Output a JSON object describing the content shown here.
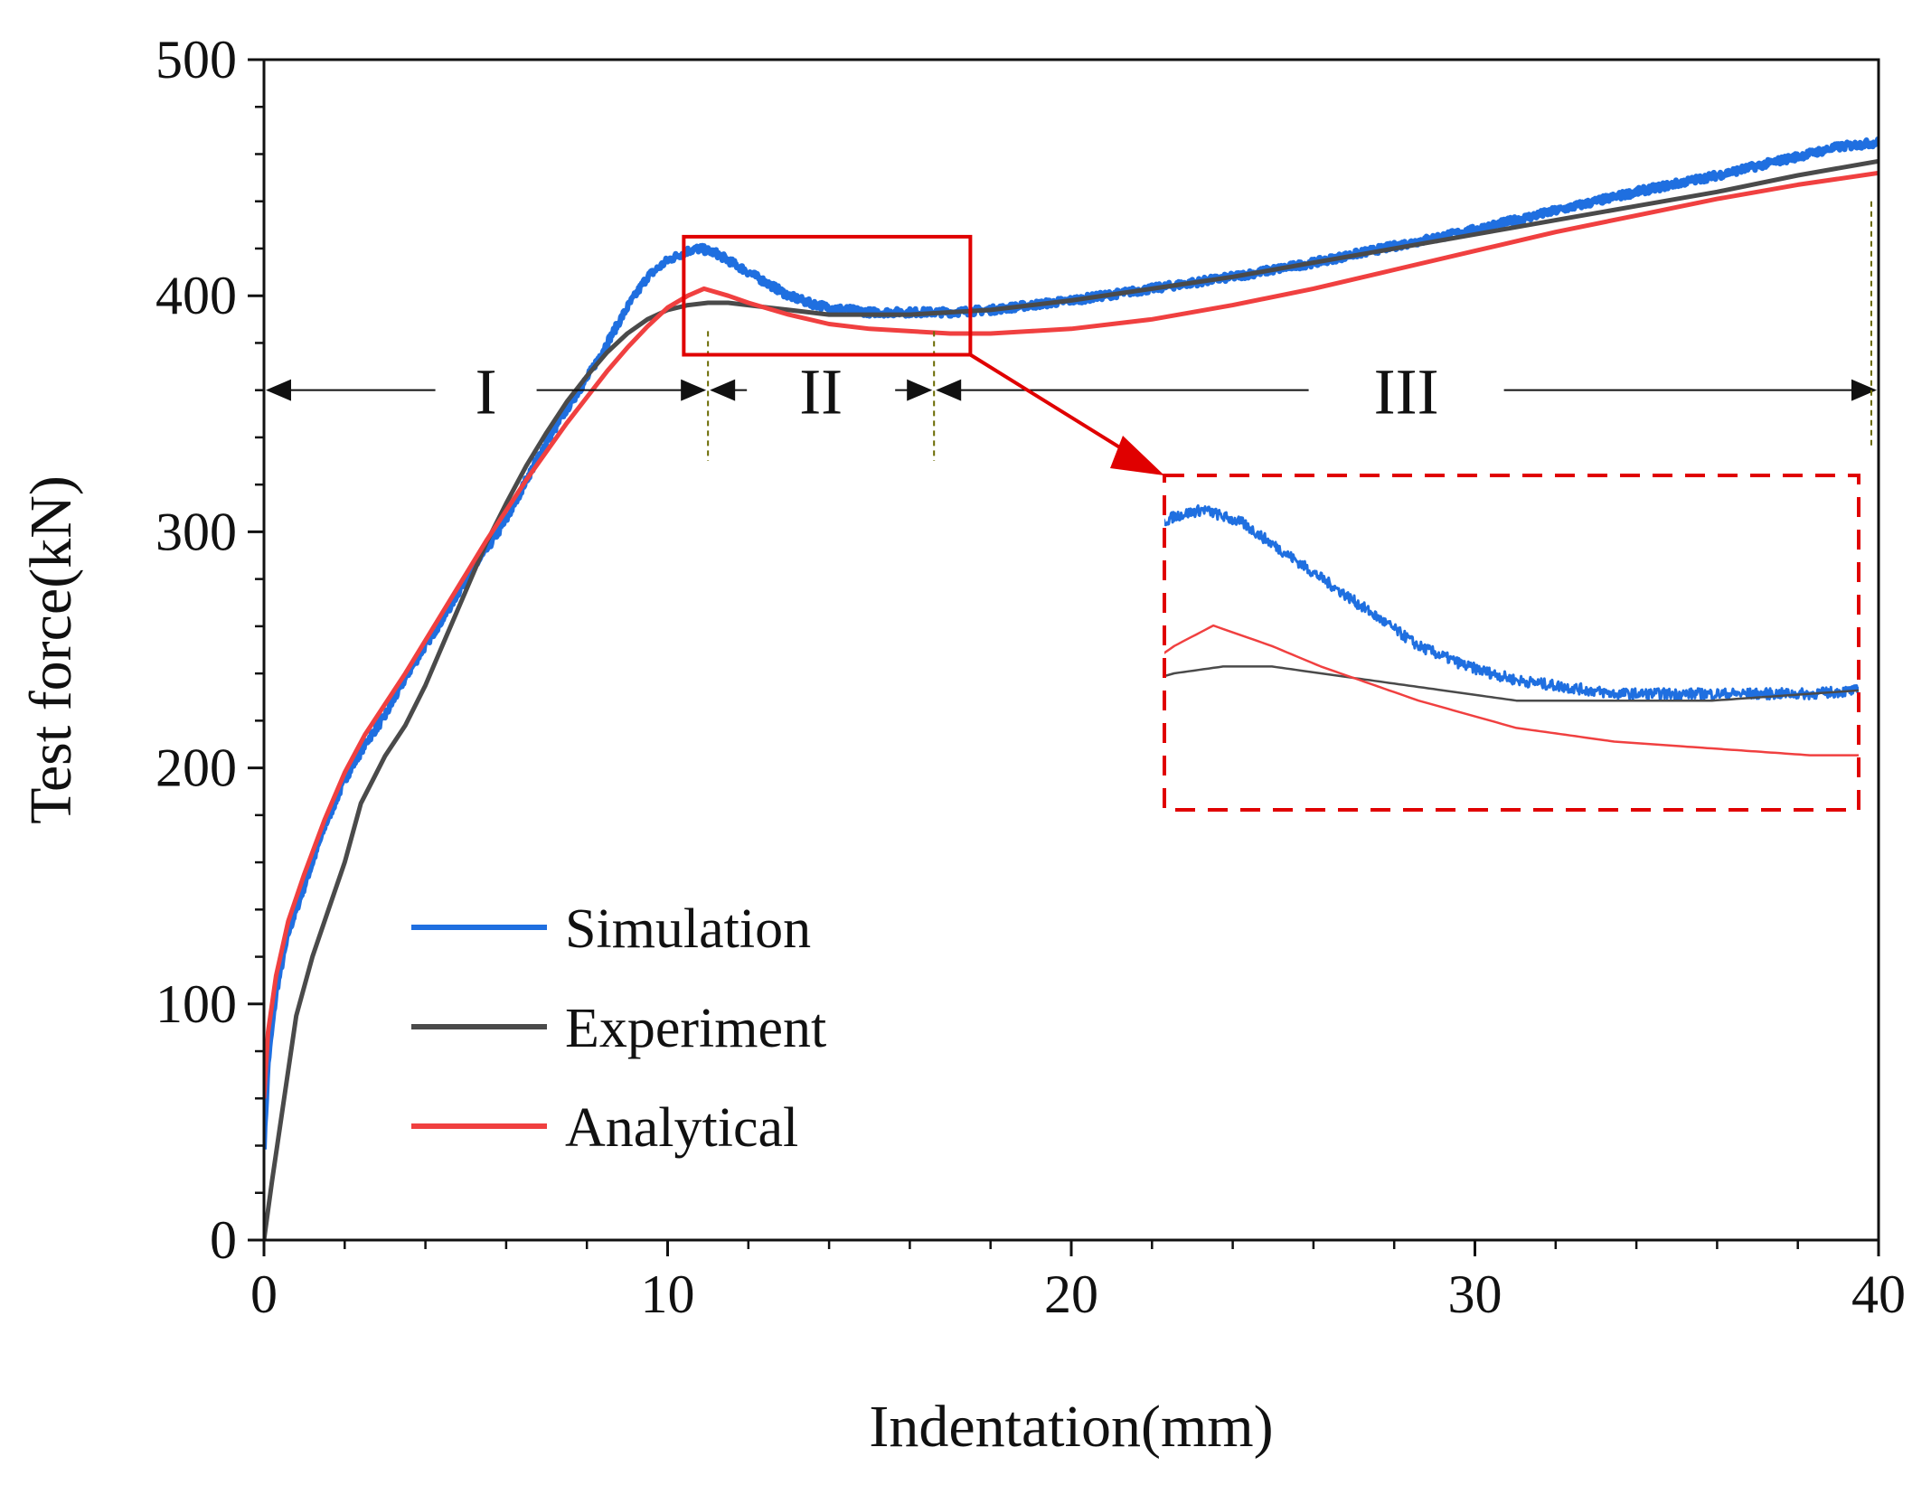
{
  "chart_data": {
    "type": "line",
    "title": "",
    "xlabel": "Indentation(mm)",
    "ylabel": "Test force(kN)",
    "xlim": [
      0,
      40
    ],
    "ylim": [
      0,
      500
    ],
    "xticks": [
      0,
      10,
      20,
      30,
      40
    ],
    "yticks": [
      0,
      100,
      200,
      300,
      400,
      500
    ],
    "grid": false,
    "legend_position": "lower-left",
    "series": [
      {
        "name": "Simulation",
        "color": "#1f6fe0",
        "noisy": true,
        "x": [
          0,
          0.1,
          0.3,
          0.6,
          1.0,
          1.5,
          2.0,
          2.5,
          3.0,
          3.5,
          4.0,
          4.5,
          5.0,
          5.5,
          6.0,
          6.5,
          7.0,
          7.5,
          8.0,
          8.5,
          9.0,
          9.5,
          10.0,
          10.5,
          10.8,
          11.2,
          11.6,
          12.0,
          12.5,
          13.0,
          13.5,
          14.0,
          14.5,
          15.0,
          15.5,
          16.0,
          16.5,
          17.0,
          18.0,
          20.0,
          22.0,
          24.0,
          26.0,
          28.0,
          30.0,
          32.0,
          34.0,
          36.0,
          38.0,
          39.0,
          40.0
        ],
        "y": [
          40,
          75,
          105,
          130,
          150,
          175,
          195,
          210,
          222,
          238,
          252,
          265,
          280,
          292,
          305,
          322,
          338,
          352,
          365,
          380,
          395,
          408,
          415,
          419,
          420,
          418,
          414,
          410,
          405,
          400,
          397,
          395,
          394,
          393,
          393,
          393,
          393,
          393,
          394,
          398,
          403,
          408,
          414,
          421,
          428,
          436,
          444,
          451,
          459,
          463,
          465
        ]
      },
      {
        "name": "Experiment",
        "color": "#4a4a4a",
        "noisy": false,
        "x": [
          0,
          0.2,
          0.5,
          0.8,
          1.2,
          1.6,
          2.0,
          2.4,
          2.7,
          3.0,
          3.5,
          4.0,
          4.5,
          5.0,
          5.5,
          6.0,
          6.5,
          7.0,
          7.5,
          8.0,
          8.5,
          9.0,
          9.5,
          10.0,
          10.5,
          11.0,
          11.5,
          12.0,
          12.5,
          13.0,
          13.5,
          14.0,
          15.0,
          16.0,
          17.0,
          18.0,
          20.0,
          22.0,
          24.0,
          26.0,
          28.0,
          30.0,
          32.0,
          34.0,
          36.0,
          38.0,
          40.0
        ],
        "y": [
          0,
          25,
          60,
          95,
          120,
          140,
          160,
          185,
          195,
          205,
          218,
          235,
          255,
          275,
          295,
          312,
          328,
          342,
          355,
          366,
          376,
          384,
          390,
          394,
          396,
          397,
          397,
          396,
          395,
          394,
          393,
          392,
          392,
          392,
          393,
          394,
          398,
          403,
          408,
          414,
          420,
          426,
          432,
          438,
          444,
          451,
          457
        ]
      },
      {
        "name": "Analytical",
        "color": "#f04040",
        "noisy": false,
        "x": [
          0,
          0.1,
          0.3,
          0.6,
          1.0,
          1.5,
          2.0,
          2.5,
          3.0,
          3.5,
          4.0,
          4.5,
          5.0,
          5.5,
          6.0,
          6.5,
          7.0,
          7.5,
          8.0,
          8.5,
          9.0,
          9.5,
          10.0,
          10.5,
          10.9,
          11.5,
          12.0,
          13.0,
          14.0,
          15.0,
          16.0,
          17.0,
          18.0,
          19.0,
          20.0,
          22.0,
          24.0,
          26.0,
          28.0,
          30.0,
          32.0,
          34.0,
          36.0,
          38.0,
          40.0
        ],
        "y": [
          60,
          88,
          112,
          135,
          155,
          178,
          198,
          214,
          227,
          240,
          254,
          268,
          282,
          296,
          309,
          322,
          334,
          346,
          357,
          368,
          378,
          387,
          395,
          400,
          403,
          400,
          397,
          392,
          388,
          386,
          385,
          384,
          384,
          385,
          386,
          390,
          396,
          403,
          411,
          419,
          427,
          434,
          441,
          447,
          452
        ]
      }
    ],
    "regions": [
      {
        "label": "I",
        "x_start": 0,
        "x_end": 11.0
      },
      {
        "label": "II",
        "x_start": 11.0,
        "x_end": 16.6
      },
      {
        "label": "III",
        "x_start": 16.6,
        "x_end": 40.0
      }
    ],
    "region_arrow_y": 360,
    "zoom_box": {
      "x_range": [
        10.4,
        17.5
      ],
      "y_range": [
        375,
        425
      ]
    }
  }
}
